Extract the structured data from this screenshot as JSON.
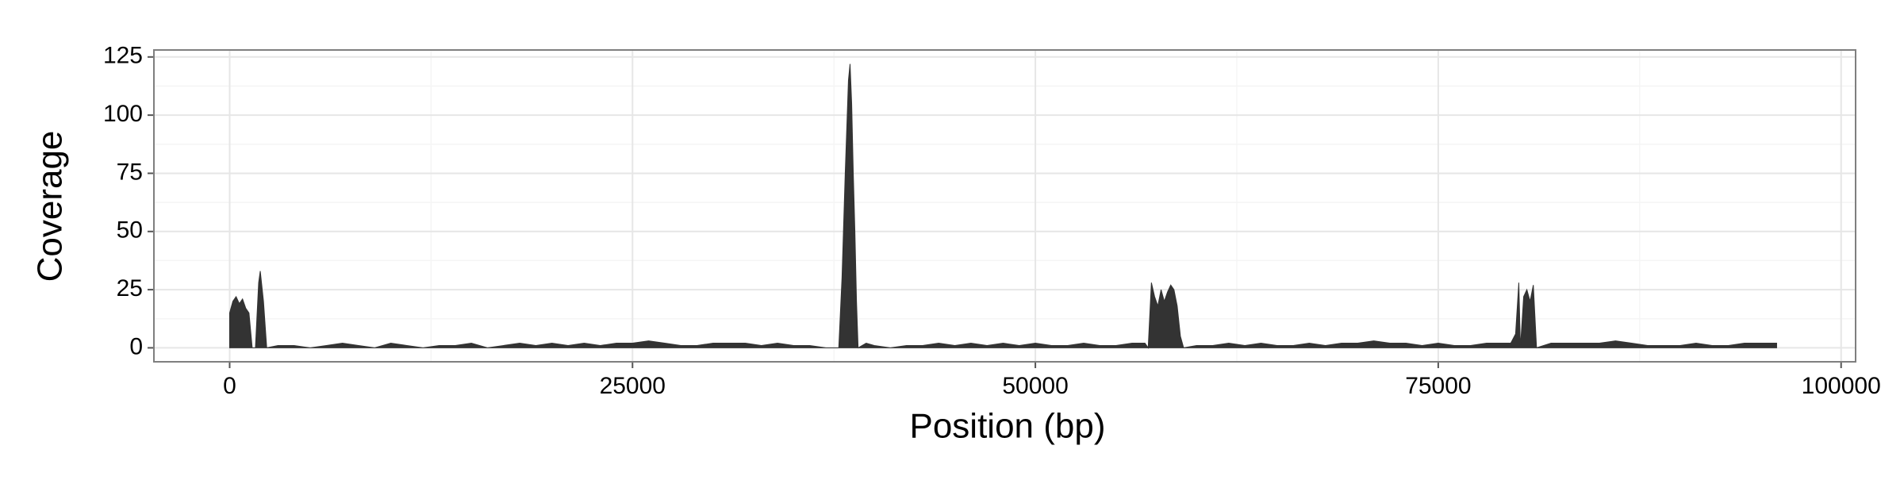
{
  "chart_data": {
    "type": "area",
    "x_label": "Position (bp)",
    "y_label": "Coverage",
    "x": [
      0,
      200,
      400,
      600,
      800,
      1000,
      1200,
      1400,
      1600,
      1800,
      1900,
      2100,
      2300,
      3000,
      4000,
      5000,
      6000,
      7000,
      8000,
      9000,
      10000,
      11000,
      12000,
      13000,
      14000,
      15000,
      16000,
      17000,
      18000,
      19000,
      20000,
      21000,
      22000,
      23000,
      24000,
      25000,
      26000,
      27000,
      28000,
      29000,
      30000,
      31000,
      32000,
      33000,
      34000,
      35000,
      36000,
      37000,
      37800,
      38000,
      38200,
      38400,
      38500,
      38600,
      38700,
      38800,
      38900,
      39000,
      39500,
      40000,
      41000,
      42000,
      43000,
      44000,
      45000,
      46000,
      47000,
      48000,
      49000,
      50000,
      51000,
      52000,
      53000,
      54000,
      55000,
      56000,
      56800,
      57000,
      57200,
      57400,
      57600,
      57800,
      58000,
      58200,
      58400,
      58600,
      58800,
      59000,
      59200,
      60000,
      61000,
      62000,
      63000,
      64000,
      65000,
      66000,
      67000,
      68000,
      69000,
      70000,
      71000,
      72000,
      73000,
      74000,
      75000,
      76000,
      77000,
      78000,
      79000,
      79500,
      79800,
      80000,
      80100,
      80300,
      80500,
      80700,
      80900,
      81100,
      82000,
      83000,
      84000,
      85000,
      86000,
      87000,
      88000,
      89000,
      90000,
      91000,
      92000,
      93000,
      94000,
      95000,
      96000
    ],
    "values": [
      15,
      20,
      22,
      19,
      21,
      17,
      15,
      0,
      0,
      28,
      33,
      20,
      0,
      1,
      1,
      0,
      1,
      2,
      1,
      0,
      2,
      1,
      0,
      1,
      1,
      2,
      0,
      1,
      2,
      1,
      2,
      1,
      2,
      1,
      2,
      2,
      3,
      2,
      1,
      1,
      2,
      2,
      2,
      1,
      2,
      1,
      1,
      0,
      0,
      30,
      75,
      115,
      122,
      105,
      75,
      50,
      20,
      0,
      2,
      1,
      0,
      1,
      1,
      2,
      1,
      2,
      1,
      2,
      1,
      2,
      1,
      1,
      2,
      1,
      1,
      2,
      2,
      0,
      28,
      22,
      18,
      25,
      20,
      24,
      27,
      25,
      18,
      5,
      0,
      1,
      1,
      2,
      1,
      2,
      1,
      1,
      2,
      1,
      2,
      2,
      3,
      2,
      2,
      1,
      2,
      1,
      1,
      2,
      2,
      2,
      6,
      28,
      0,
      22,
      25,
      20,
      27,
      0,
      2,
      2,
      2,
      2,
      3,
      2,
      1,
      1,
      1,
      2,
      1,
      1,
      2,
      2,
      2
    ],
    "color": "#333333",
    "xlim": [
      -4700,
      100900
    ],
    "xticks": [
      0,
      25000,
      50000,
      75000,
      100000
    ],
    "minor_xticks": [
      12500,
      37500,
      62500,
      87500
    ],
    "ylim": [
      -6,
      128
    ],
    "yticks": [
      0,
      25,
      50,
      75,
      100,
      125
    ],
    "minor_yticks": [
      12.5,
      37.5,
      62.5,
      87.5,
      112.5
    ],
    "grid": true
  }
}
